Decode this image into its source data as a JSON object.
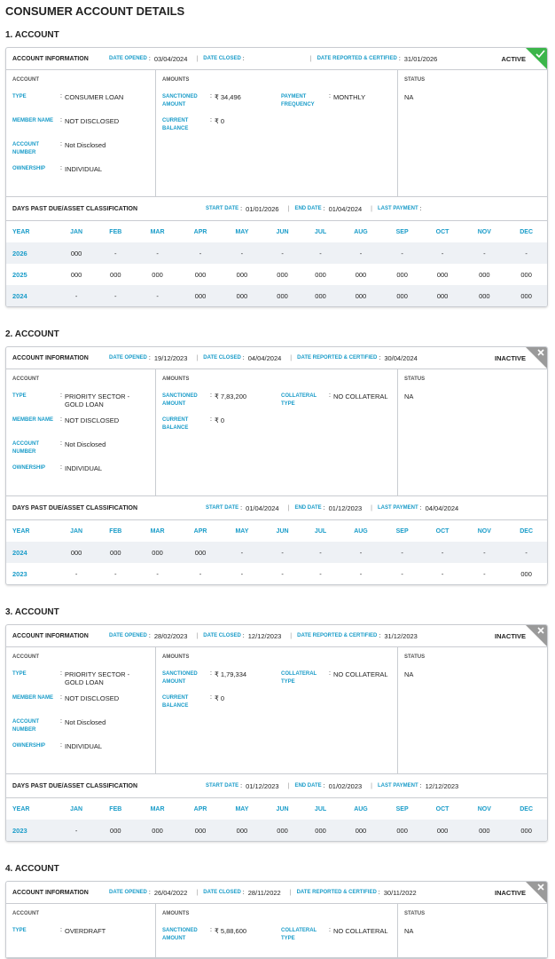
{
  "title": "CONSUMER ACCOUNT DETAILS",
  "separator": ":",
  "divider": "|",
  "accounts": [
    {
      "heading": "1. ACCOUNT",
      "info_label": "ACCOUNT INFORMATION",
      "dates": [
        {
          "label": "DATE OPENED",
          "value": "03/04/2024"
        },
        {
          "label": "DATE CLOSED",
          "value": null
        },
        {
          "label": "DATE REPORTED & CERTIFIED",
          "value": "31/01/2026"
        }
      ],
      "status": "ACTIVE",
      "account": {
        "heading": "ACCOUNT",
        "fields": [
          {
            "label": "TYPE",
            "value": "CONSUMER LOAN"
          },
          {
            "label": "MEMBER NAME",
            "value": "NOT DISCLOSED"
          },
          {
            "label": "ACCOUNT NUMBER",
            "value": "Not Disclosed"
          },
          {
            "label": "OWNERSHIP",
            "value": "INDIVIDUAL"
          }
        ]
      },
      "amounts": {
        "heading": "AMOUNTS",
        "fields": [
          {
            "label": "SANCTIONED AMOUNT",
            "value": "₹ 34,496"
          },
          {
            "label": "PAYMENT FREQUENCY",
            "value": "MONTHLY"
          },
          {
            "label": "CURRENT BALANCE",
            "value": "₹ 0"
          }
        ]
      },
      "account_status": {
        "heading": "STATUS",
        "value": "NA"
      },
      "dpd": {
        "heading": "DAYS PAST DUE/ASSET CLASSIFICATION",
        "dates": [
          {
            "label": "START DATE",
            "value": "01/01/2026"
          },
          {
            "label": "END DATE",
            "value": "01/04/2024"
          },
          {
            "label": "LAST PAYMENT",
            "value": null
          }
        ],
        "columns": [
          "YEAR",
          "JAN",
          "FEB",
          "MAR",
          "APR",
          "MAY",
          "JUN",
          "JUL",
          "AUG",
          "SEP",
          "OCT",
          "NOV",
          "DEC"
        ],
        "rows": [
          [
            "2026",
            "000",
            "-",
            "-",
            "-",
            "-",
            "-",
            "-",
            "-",
            "-",
            "-",
            "-",
            "-"
          ],
          [
            "2025",
            "000",
            "000",
            "000",
            "000",
            "000",
            "000",
            "000",
            "000",
            "000",
            "000",
            "000",
            "000"
          ],
          [
            "2024",
            "-",
            "-",
            "-",
            "000",
            "000",
            "000",
            "000",
            "000",
            "000",
            "000",
            "000",
            "000"
          ]
        ]
      }
    },
    {
      "heading": "2. ACCOUNT",
      "info_label": "ACCOUNT INFORMATION",
      "dates": [
        {
          "label": "DATE OPENED",
          "value": "19/12/2023"
        },
        {
          "label": "DATE CLOSED",
          "value": "04/04/2024"
        },
        {
          "label": "DATE REPORTED & CERTIFIED",
          "value": "30/04/2024"
        }
      ],
      "status": "INACTIVE",
      "account": {
        "heading": "ACCOUNT",
        "fields": [
          {
            "label": "TYPE",
            "value": "PRIORITY SECTOR - GOLD LOAN"
          },
          {
            "label": "MEMBER NAME",
            "value": "NOT DISCLOSED"
          },
          {
            "label": "ACCOUNT NUMBER",
            "value": "Not Disclosed"
          },
          {
            "label": "OWNERSHIP",
            "value": "INDIVIDUAL"
          }
        ]
      },
      "amounts": {
        "heading": "AMOUNTS",
        "fields": [
          {
            "label": "SANCTIONED AMOUNT",
            "value": "₹ 7,83,200"
          },
          {
            "label": "COLLATERAL TYPE",
            "value": "NO COLLATERAL"
          },
          {
            "label": "CURRENT BALANCE",
            "value": "₹ 0"
          }
        ]
      },
      "account_status": {
        "heading": "STATUS",
        "value": "NA"
      },
      "dpd": {
        "heading": "DAYS PAST DUE/ASSET CLASSIFICATION",
        "dates": [
          {
            "label": "START DATE",
            "value": "01/04/2024"
          },
          {
            "label": "END DATE",
            "value": "01/12/2023"
          },
          {
            "label": "LAST PAYMENT",
            "value": "04/04/2024"
          }
        ],
        "columns": [
          "YEAR",
          "JAN",
          "FEB",
          "MAR",
          "APR",
          "MAY",
          "JUN",
          "JUL",
          "AUG",
          "SEP",
          "OCT",
          "NOV",
          "DEC"
        ],
        "rows": [
          [
            "2024",
            "000",
            "000",
            "000",
            "000",
            "-",
            "-",
            "-",
            "-",
            "-",
            "-",
            "-",
            "-"
          ],
          [
            "2023",
            "-",
            "-",
            "-",
            "-",
            "-",
            "-",
            "-",
            "-",
            "-",
            "-",
            "-",
            "000"
          ]
        ]
      }
    },
    {
      "heading": "3. ACCOUNT",
      "info_label": "ACCOUNT INFORMATION",
      "dates": [
        {
          "label": "DATE OPENED",
          "value": "28/02/2023"
        },
        {
          "label": "DATE CLOSED",
          "value": "12/12/2023"
        },
        {
          "label": "DATE REPORTED & CERTIFIED",
          "value": "31/12/2023"
        }
      ],
      "status": "INACTIVE",
      "account": {
        "heading": "ACCOUNT",
        "fields": [
          {
            "label": "TYPE",
            "value": "PRIORITY SECTOR - GOLD LOAN"
          },
          {
            "label": "MEMBER NAME",
            "value": "NOT DISCLOSED"
          },
          {
            "label": "ACCOUNT NUMBER",
            "value": "Not Disclosed"
          },
          {
            "label": "OWNERSHIP",
            "value": "INDIVIDUAL"
          }
        ]
      },
      "amounts": {
        "heading": "AMOUNTS",
        "fields": [
          {
            "label": "SANCTIONED AMOUNT",
            "value": "₹ 1,79,334"
          },
          {
            "label": "COLLATERAL TYPE",
            "value": "NO COLLATERAL"
          },
          {
            "label": "CURRENT BALANCE",
            "value": "₹ 0"
          }
        ]
      },
      "account_status": {
        "heading": "STATUS",
        "value": "NA"
      },
      "dpd": {
        "heading": "DAYS PAST DUE/ASSET CLASSIFICATION",
        "dates": [
          {
            "label": "START DATE",
            "value": "01/12/2023"
          },
          {
            "label": "END DATE",
            "value": "01/02/2023"
          },
          {
            "label": "LAST PAYMENT",
            "value": "12/12/2023"
          }
        ],
        "columns": [
          "YEAR",
          "JAN",
          "FEB",
          "MAR",
          "APR",
          "MAY",
          "JUN",
          "JUL",
          "AUG",
          "SEP",
          "OCT",
          "NOV",
          "DEC"
        ],
        "rows": [
          [
            "2023",
            "-",
            "000",
            "000",
            "000",
            "000",
            "000",
            "000",
            "000",
            "000",
            "000",
            "000",
            "000"
          ]
        ]
      }
    },
    {
      "heading": "4. ACCOUNT",
      "info_label": "ACCOUNT INFORMATION",
      "dates": [
        {
          "label": "DATE OPENED",
          "value": "26/04/2022"
        },
        {
          "label": "DATE CLOSED",
          "value": "28/11/2022"
        },
        {
          "label": "DATE REPORTED & CERTIFIED",
          "value": "30/11/2022"
        }
      ],
      "status": "INACTIVE",
      "account": {
        "heading": "ACCOUNT",
        "fields": [
          {
            "label": "TYPE",
            "value": "OVERDRAFT"
          }
        ]
      },
      "amounts": {
        "heading": "AMOUNTS",
        "fields": [
          {
            "label": "SANCTIONED AMOUNT",
            "value": "₹ 5,88,600"
          },
          {
            "label": "COLLATERAL TYPE",
            "value": "NO COLLATERAL"
          }
        ]
      },
      "account_status": {
        "heading": "STATUS",
        "value": "NA"
      }
    }
  ]
}
